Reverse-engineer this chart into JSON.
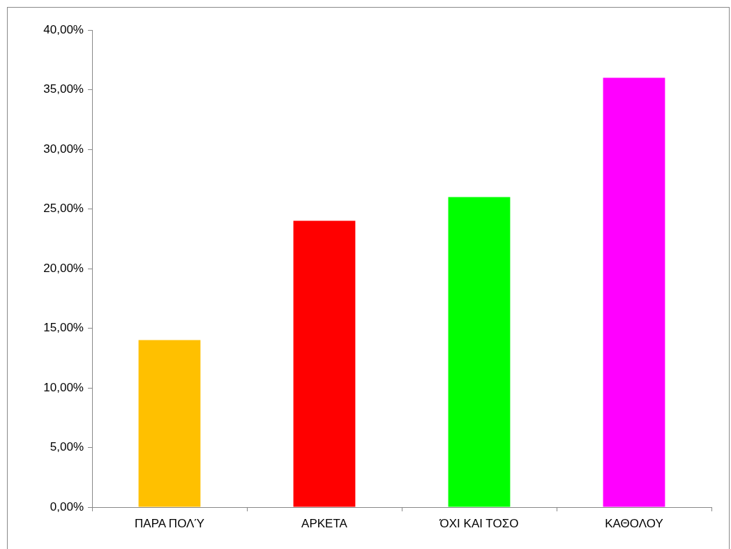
{
  "chart_data": {
    "type": "bar",
    "categories": [
      "ΠΑΡΑ ΠΟΛΎ",
      "ΑΡΚΕΤΑ",
      "ΌΧΙ ΚΑΙ ΤΟΣΟ",
      "ΚΑΘΟΛΟΥ"
    ],
    "values": [
      14,
      24,
      26,
      36
    ],
    "colors": [
      "#ffc000",
      "#ff0000",
      "#00ff00",
      "#ff00ff"
    ],
    "ylim": [
      0,
      40
    ],
    "yticks": [
      {
        "value": 0,
        "label": "0,00%"
      },
      {
        "value": 5,
        "label": "5,00%"
      },
      {
        "value": 10,
        "label": "10,00%"
      },
      {
        "value": 15,
        "label": "15,00%"
      },
      {
        "value": 20,
        "label": "20,00%"
      },
      {
        "value": 25,
        "label": "25,00%"
      },
      {
        "value": 30,
        "label": "30,00%"
      },
      {
        "value": 35,
        "label": "35,00%"
      },
      {
        "value": 40,
        "label": "40,00%"
      }
    ],
    "grid": false,
    "legend": false
  }
}
